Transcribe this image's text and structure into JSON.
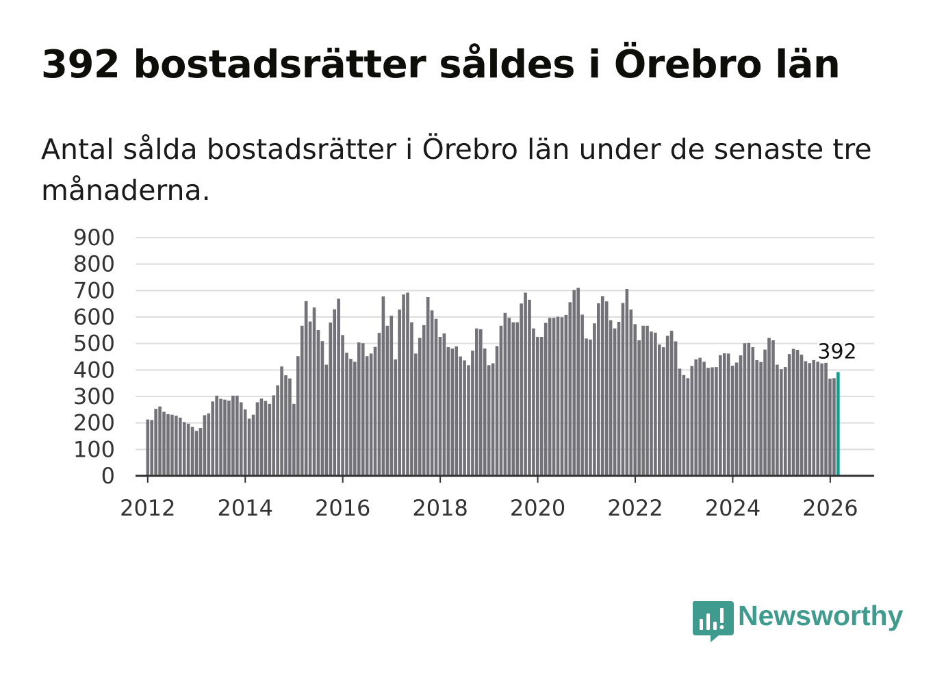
{
  "header": {
    "title": "392 bostadsrätter såldes i Örebro län",
    "subtitle": "Antal sålda bostadsrätter i Örebro län under de senaste tre månaderna."
  },
  "brand": {
    "name": "Newsworthy",
    "color": "#3e9b8e",
    "icon": "chart-bubble-icon"
  },
  "colors": {
    "bar": "#737278",
    "highlight": "#1b9a8d",
    "grid": "#dddddd",
    "axis": "#333333"
  },
  "chart_data": {
    "type": "bar",
    "title": "Antal sålda bostadsrätter i Örebro län under de senaste tre månaderna.",
    "xlabel": "",
    "ylabel": "",
    "ylim": [
      0,
      900
    ],
    "yticks": [
      "0",
      "100",
      "200",
      "300",
      "400",
      "500",
      "600",
      "700",
      "800",
      "900"
    ],
    "xlim": [
      2011.75,
      2026.9
    ],
    "xticks": [
      "2012",
      "2014",
      "2016",
      "2018",
      "2020",
      "2022",
      "2024",
      "2026"
    ],
    "start_year": 2012.0,
    "step_years": 0.0833,
    "grid": true,
    "highlight_last": true,
    "last_label": "392",
    "values": [
      213,
      211,
      253,
      262,
      242,
      233,
      231,
      227,
      220,
      203,
      197,
      185,
      170,
      181,
      229,
      236,
      281,
      303,
      291,
      288,
      284,
      303,
      303,
      278,
      251,
      216,
      231,
      278,
      292,
      283,
      272,
      304,
      342,
      413,
      380,
      368,
      272,
      452,
      567,
      660,
      583,
      636,
      551,
      509,
      420,
      579,
      629,
      669,
      532,
      465,
      442,
      431,
      504,
      501,
      452,
      462,
      487,
      540,
      678,
      567,
      605,
      440,
      628,
      685,
      692,
      580,
      462,
      521,
      569,
      675,
      625,
      593,
      525,
      538,
      486,
      481,
      489,
      451,
      436,
      418,
      473,
      557,
      554,
      481,
      418,
      425,
      490,
      567,
      616,
      597,
      580,
      580,
      651,
      692,
      665,
      557,
      525,
      525,
      578,
      597,
      597,
      601,
      599,
      608,
      656,
      702,
      710,
      609,
      519,
      515,
      576,
      652,
      679,
      659,
      588,
      557,
      582,
      653,
      706,
      628,
      573,
      512,
      567,
      567,
      545,
      541,
      496,
      486,
      529,
      548,
      508,
      405,
      381,
      369,
      415,
      440,
      446,
      431,
      408,
      410,
      411,
      456,
      463,
      462,
      416,
      428,
      455,
      501,
      502,
      486,
      437,
      430,
      477,
      521,
      512,
      420,
      403,
      411,
      460,
      480,
      476,
      458,
      433,
      426,
      437,
      431,
      425,
      427,
      367,
      369,
      392
    ]
  }
}
